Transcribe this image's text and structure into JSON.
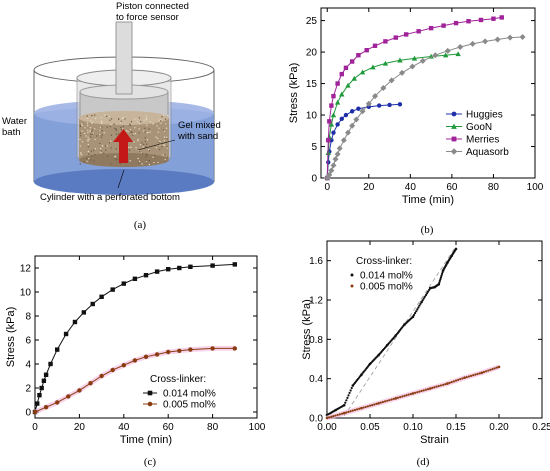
{
  "diagram": {
    "labels": {
      "piston": "Piston connected\nto force sensor",
      "water": "Water\nbath",
      "gel": "Gel mixed\nwith sand",
      "cylinder": "Cylinder with a perforated bottom"
    },
    "caption": "(a)"
  },
  "captions": {
    "b": "(b)",
    "c": "(c)",
    "d": "(d)"
  },
  "colors": {
    "huggies": "#1f2fa8",
    "goon": "#1e9a3a",
    "merries": "#a0239a",
    "aquasorb": "#8a8a8a",
    "c014": "#111111",
    "c005": "#8a3c10",
    "water": "#7f9fd8"
  },
  "chart_data": [
    {
      "type": "line",
      "xlabel": "Time (min)",
      "ylabel": "Stress (kPa)",
      "xlim": [
        -3,
        100
      ],
      "ylim": [
        0,
        27
      ],
      "xticks": [
        "0",
        "20",
        "40",
        "60",
        "80",
        "100"
      ],
      "yticks": [
        "0",
        "5",
        "10",
        "15",
        "20",
        "25"
      ],
      "legend_position": "lower-right",
      "series": [
        {
          "name": "Huggies",
          "x": [
            0,
            0.5,
            1,
            2,
            3,
            5,
            7,
            9,
            12,
            15,
            20,
            25,
            30,
            35
          ],
          "y": [
            0,
            2.5,
            4.2,
            6,
            7.2,
            8.5,
            9.4,
            10,
            10.6,
            11,
            11.3,
            11.5,
            11.6,
            11.7
          ]
        },
        {
          "name": "GooN",
          "x": [
            0,
            0.5,
            1,
            2,
            3,
            5,
            7,
            10,
            13,
            17,
            22,
            28,
            35,
            42,
            50,
            57,
            63
          ],
          "y": [
            0,
            4,
            6.5,
            8.5,
            10,
            12,
            13.3,
            14.7,
            15.8,
            16.8,
            17.6,
            18.2,
            18.7,
            19,
            19.3,
            19.5,
            19.7
          ]
        },
        {
          "name": "Merries",
          "x": [
            0,
            0.5,
            1,
            2,
            3,
            5,
            7,
            9,
            12,
            15,
            19,
            23,
            28,
            33,
            38,
            44,
            50,
            56,
            62,
            68,
            74,
            80,
            84
          ],
          "y": [
            0,
            6,
            9,
            11.5,
            13,
            15,
            16.5,
            17.5,
            18.5,
            19.5,
            20.3,
            21,
            21.7,
            22.3,
            22.8,
            23.3,
            23.8,
            24.2,
            24.6,
            24.9,
            25.1,
            25.3,
            25.5
          ]
        },
        {
          "name": "Aquasorb",
          "x": [
            0,
            1,
            2,
            3,
            4,
            5,
            6,
            8,
            10,
            12,
            14,
            17,
            20,
            23,
            27,
            31,
            36,
            41,
            46,
            52,
            58,
            64,
            70,
            76,
            82,
            88,
            94
          ],
          "y": [
            0,
            0.5,
            1.2,
            2,
            3,
            3.8,
            4.7,
            6,
            7.2,
            8.3,
            9.3,
            10.6,
            11.8,
            13,
            14.3,
            15.5,
            16.7,
            17.7,
            18.6,
            19.5,
            20.2,
            20.8,
            21.3,
            21.7,
            22,
            22.3,
            22.4
          ]
        }
      ]
    },
    {
      "type": "line",
      "xlabel": "Time (min)",
      "ylabel": "Stress (kPa)",
      "xlim": [
        0,
        100
      ],
      "ylim": [
        -0.5,
        13
      ],
      "xticks": [
        "0",
        "20",
        "40",
        "60",
        "80",
        "100"
      ],
      "yticks": [
        "0",
        "2",
        "4",
        "6",
        "8",
        "10",
        "12"
      ],
      "legend_title": "Cross-linker:",
      "legend_position": "lower-right",
      "series": [
        {
          "name": "0.014 mol%",
          "x": [
            0,
            1,
            2,
            3,
            4,
            5,
            7,
            10,
            14,
            18,
            22,
            26,
            30,
            35,
            40,
            45,
            50,
            55,
            60,
            65,
            70,
            80,
            90
          ],
          "y": [
            0,
            0.7,
            1.4,
            2,
            2.6,
            3.1,
            4,
            5.2,
            6.5,
            7.5,
            8.3,
            9,
            9.6,
            10.2,
            10.7,
            11.1,
            11.4,
            11.7,
            11.9,
            12,
            12.1,
            12.2,
            12.3
          ]
        },
        {
          "name": "0.005 mol%",
          "x": [
            0,
            5,
            10,
            15,
            20,
            25,
            30,
            35,
            40,
            45,
            50,
            55,
            60,
            65,
            70,
            80,
            90
          ],
          "y": [
            0,
            0.4,
            0.8,
            1.3,
            1.8,
            2.4,
            3,
            3.5,
            3.9,
            4.3,
            4.6,
            4.8,
            5,
            5.1,
            5.2,
            5.3,
            5.3
          ]
        }
      ]
    },
    {
      "type": "scatter",
      "xlabel": "Strain",
      "ylabel": "Stress (kPa)",
      "xlim": [
        0,
        0.25
      ],
      "ylim": [
        0,
        1.8
      ],
      "xticks": [
        "0.00",
        "0.05",
        "0.10",
        "0.15",
        "0.20",
        "0.25"
      ],
      "yticks": [
        "0.0",
        "0.4",
        "0.8",
        "1.2",
        "1.6"
      ],
      "legend_title": "Cross-linker:",
      "legend_position": "upper-left",
      "series": [
        {
          "name": "0.014 mol%",
          "x": [
            0.0,
            0.01,
            0.02,
            0.03,
            0.04,
            0.05,
            0.06,
            0.07,
            0.08,
            0.09,
            0.1,
            0.11,
            0.12,
            0.125,
            0.13,
            0.135,
            0.14,
            0.145,
            0.15
          ],
          "y": [
            0.03,
            0.08,
            0.13,
            0.33,
            0.44,
            0.55,
            0.64,
            0.74,
            0.84,
            0.95,
            1.03,
            1.18,
            1.32,
            1.33,
            1.36,
            1.5,
            1.58,
            1.65,
            1.72
          ]
        },
        {
          "name": "0.005 mol%",
          "x": [
            0.0,
            0.02,
            0.04,
            0.06,
            0.08,
            0.1,
            0.12,
            0.14,
            0.16,
            0.18,
            0.2
          ],
          "y": [
            0.0,
            0.05,
            0.1,
            0.15,
            0.2,
            0.25,
            0.3,
            0.35,
            0.41,
            0.46,
            0.52
          ]
        }
      ]
    }
  ]
}
